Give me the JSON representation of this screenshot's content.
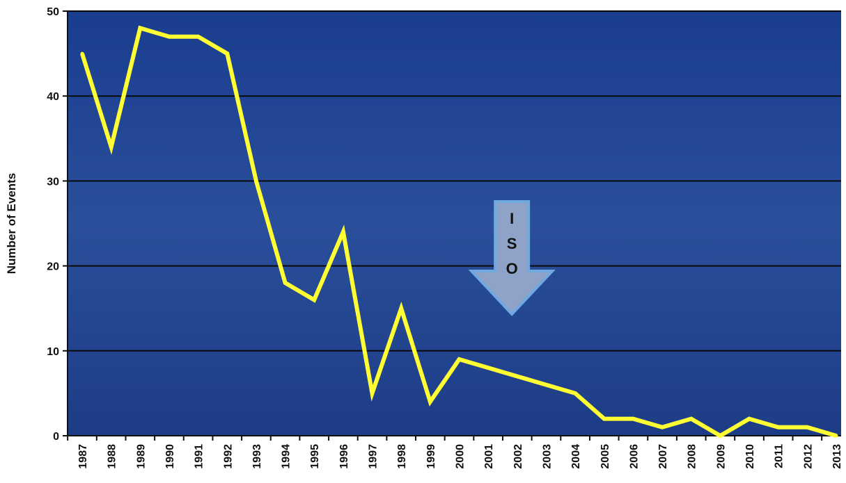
{
  "chart_data": {
    "type": "line",
    "title": "",
    "xlabel": "",
    "ylabel": "Number of Events",
    "ylim": [
      0,
      50
    ],
    "y_ticks": [
      0,
      10,
      20,
      30,
      40,
      50
    ],
    "grid": true,
    "legend": "none",
    "colors": {
      "line": "#ffff33",
      "plot_background": "#1e3f8c",
      "arrow_fill": "#8fa2c8",
      "arrow_edge": "#6fa9e0"
    },
    "x": [
      "1987",
      "1988",
      "1989",
      "1990",
      "1991",
      "1992",
      "1993",
      "1994",
      "1995",
      "1996",
      "1997",
      "1998",
      "1999",
      "2000",
      "2001",
      "2002",
      "2003",
      "2004",
      "2005",
      "2006",
      "2007",
      "2008",
      "2009",
      "2010",
      "2011",
      "2012",
      "2013"
    ],
    "series": [
      {
        "values": [
          45,
          34,
          48,
          47,
          47,
          45,
          30,
          18,
          16,
          24,
          5,
          15,
          4,
          9,
          8,
          7,
          6,
          5,
          2,
          2,
          1,
          2,
          0,
          2,
          1,
          1,
          0
        ]
      }
    ],
    "annotations": [
      {
        "type": "arrow-down",
        "icon": "down-arrow-icon",
        "letters": [
          "I",
          "S",
          "O"
        ],
        "near_x": "2001"
      }
    ]
  }
}
